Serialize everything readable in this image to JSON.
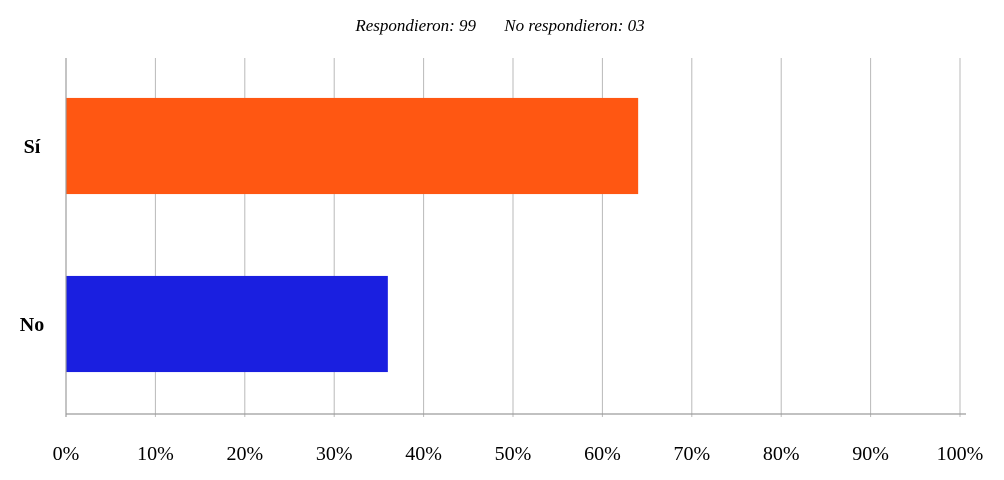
{
  "header": {
    "responded_label": "Respondieron: 99",
    "not_responded_label": "No respondieron: 03"
  },
  "chart_data": {
    "type": "bar",
    "orientation": "horizontal",
    "title": "",
    "xlabel": "",
    "ylabel": "",
    "categories": [
      "Sí",
      "No"
    ],
    "values": [
      64,
      36
    ],
    "colors": [
      "#ff5712",
      "#1a1fe0"
    ],
    "xlim": [
      0,
      100
    ],
    "x_ticks": [
      0,
      10,
      20,
      30,
      40,
      50,
      60,
      70,
      80,
      90,
      100
    ],
    "x_tick_labels": [
      "0%",
      "10%",
      "20%",
      "30%",
      "40%",
      "50%",
      "60%",
      "70%",
      "80%",
      "90%",
      "100%"
    ],
    "grid": true,
    "legend": "none"
  }
}
